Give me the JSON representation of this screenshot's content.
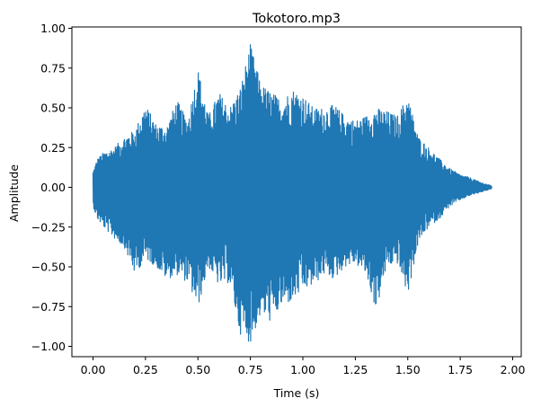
{
  "chart_data": {
    "type": "line",
    "title": "Tokotoro.mp3",
    "xlabel": "Time (s)",
    "ylabel": "Amplitude",
    "xlim": [
      -0.1,
      2.0
    ],
    "ylim": [
      -1.08,
      1.0
    ],
    "xticks": [
      0.0,
      0.25,
      0.5,
      0.75,
      1.0,
      1.25,
      1.5,
      1.75,
      2.0
    ],
    "xtick_labels": [
      "0.00",
      "0.25",
      "0.50",
      "0.75",
      "1.00",
      "1.25",
      "1.50",
      "1.75",
      "2.00"
    ],
    "yticks": [
      -1.0,
      -0.75,
      -0.5,
      -0.25,
      0.0,
      0.25,
      0.5,
      0.75,
      1.0
    ],
    "ytick_labels": [
      "−1.00",
      "−0.75",
      "−0.50",
      "−0.25",
      "0.00",
      "0.25",
      "0.50",
      "0.75",
      "1.00"
    ],
    "grid": false,
    "series": [
      {
        "color": "#1f77b4",
        "envelope": {
          "t": [
            0.0,
            0.02,
            0.05,
            0.1,
            0.15,
            0.2,
            0.25,
            0.3,
            0.35,
            0.4,
            0.45,
            0.5,
            0.55,
            0.6,
            0.65,
            0.7,
            0.75,
            0.8,
            0.85,
            0.9,
            0.95,
            1.0,
            1.05,
            1.1,
            1.15,
            1.2,
            1.25,
            1.3,
            1.35,
            1.4,
            1.45,
            1.5,
            1.55,
            1.6,
            1.65,
            1.7,
            1.75,
            1.8,
            1.85,
            1.9
          ],
          "max": [
            0.1,
            0.18,
            0.22,
            0.25,
            0.32,
            0.36,
            0.52,
            0.4,
            0.38,
            0.55,
            0.42,
            0.75,
            0.45,
            0.6,
            0.5,
            0.62,
            0.9,
            0.65,
            0.6,
            0.55,
            0.62,
            0.58,
            0.5,
            0.5,
            0.52,
            0.45,
            0.42,
            0.45,
            0.5,
            0.48,
            0.45,
            0.58,
            0.32,
            0.25,
            0.18,
            0.12,
            0.08,
            0.06,
            0.03,
            0.01
          ],
          "min": [
            -0.12,
            -0.2,
            -0.25,
            -0.32,
            -0.38,
            -0.55,
            -0.45,
            -0.5,
            -0.58,
            -0.55,
            -0.6,
            -0.76,
            -0.5,
            -0.62,
            -0.6,
            -0.92,
            -0.98,
            -0.8,
            -0.85,
            -0.75,
            -0.72,
            -0.65,
            -0.62,
            -0.55,
            -0.58,
            -0.5,
            -0.48,
            -0.55,
            -0.78,
            -0.5,
            -0.48,
            -0.68,
            -0.35,
            -0.25,
            -0.2,
            -0.12,
            -0.08,
            -0.05,
            -0.03,
            -0.01
          ]
        }
      }
    ]
  }
}
